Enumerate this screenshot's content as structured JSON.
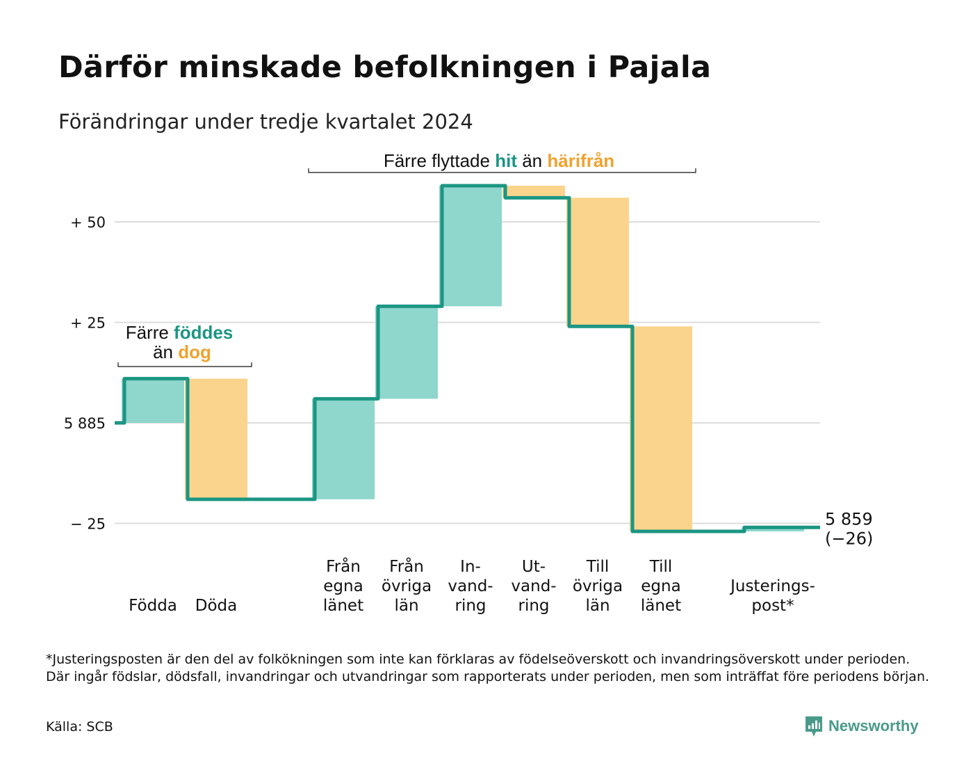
{
  "title": "Därför minskade befolkningen i Pajala",
  "subtitle": "Förändringar under tredje kvartalet 2024",
  "footnote": "*Justeringsposten är den del av folkökningen som inte kan förklaras av födelseöverskott och invandringsöverskott under perioden. Där ingår födslar, dödsfall, invandringar och utvandringar som rapporterats under perioden, men som inträffat före periodens början.",
  "source": "Källa: SCB",
  "brand": {
    "name": "Newsworthy",
    "icon": "newsworthy-logo-icon",
    "color": "#4a9a8a"
  },
  "colors": {
    "increase": "#8fd6cc",
    "decrease": "#fad48c",
    "line": "#1b9683",
    "teal_text": "#1b9683",
    "orange_text": "#f0a22e",
    "grid": "#dddddd"
  },
  "chart_data": {
    "type": "waterfall",
    "start_value": 5885,
    "end_value": 5859,
    "end_label": "5 859",
    "end_change_label": "(−26)",
    "y_range": [
      -27,
      62
    ],
    "y_ticks": [
      {
        "value": 50,
        "label": "+ 50"
      },
      {
        "value": 25,
        "label": "+ 25"
      },
      {
        "value": 0,
        "label": "5 885"
      },
      {
        "value": -25,
        "label": "− 25"
      }
    ],
    "grid": true,
    "steps": [
      {
        "id": "fodda",
        "label_lines": [
          "Födda"
        ],
        "value": 11,
        "direction": "up"
      },
      {
        "id": "doda",
        "label_lines": [
          "Döda"
        ],
        "value": -30,
        "direction": "down"
      },
      {
        "id": "fran-egna-lanet",
        "label_lines": [
          "Från",
          "egna",
          "länet"
        ],
        "value": 25,
        "direction": "up"
      },
      {
        "id": "fran-ovriga-lan",
        "label_lines": [
          "Från",
          "övriga",
          "län"
        ],
        "value": 23,
        "direction": "up"
      },
      {
        "id": "invandring",
        "label_lines": [
          "In-",
          "vand-",
          "ring"
        ],
        "value": 30,
        "direction": "up"
      },
      {
        "id": "utvandring",
        "label_lines": [
          "Ut-",
          "vand-",
          "ring"
        ],
        "value": -3,
        "direction": "down"
      },
      {
        "id": "till-ovriga-lan",
        "label_lines": [
          "Till",
          "övriga",
          "län"
        ],
        "value": -32,
        "direction": "down"
      },
      {
        "id": "till-egna-lanet",
        "label_lines": [
          "Till",
          "egna",
          "länet"
        ],
        "value": -51,
        "direction": "down"
      },
      {
        "id": "justeringspost",
        "label_lines": [
          "Justerings-",
          "post*"
        ],
        "value": 1,
        "direction": "up"
      }
    ],
    "annotations": [
      {
        "id": "births",
        "parts": [
          {
            "text": "Färre ",
            "style": "plain"
          },
          {
            "text": "föddes",
            "style": "teal"
          },
          {
            "text": "än ",
            "style": "plain"
          },
          {
            "text": "dog",
            "style": "orange"
          }
        ]
      },
      {
        "id": "migration",
        "parts": [
          {
            "text": "Färre flyttade ",
            "style": "plain"
          },
          {
            "text": "hit",
            "style": "teal"
          },
          {
            "text": " än ",
            "style": "plain"
          },
          {
            "text": "härifrån",
            "style": "orange"
          }
        ]
      }
    ]
  }
}
